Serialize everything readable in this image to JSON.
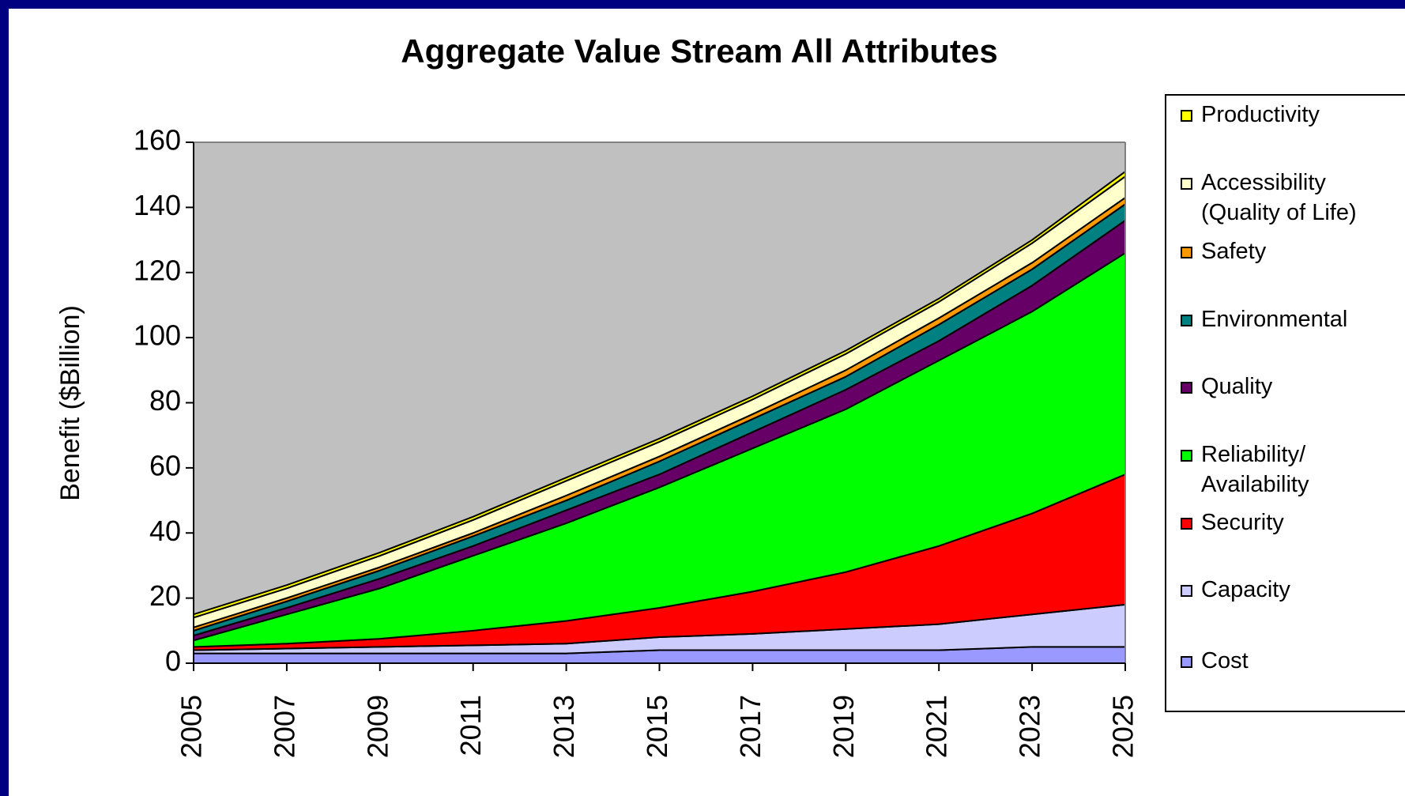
{
  "chart_data": {
    "type": "stacked_area",
    "title": "Aggregate Value Stream All Attributes",
    "y_label": "Benefit ($Billion)",
    "x": [
      2005,
      2007,
      2009,
      2011,
      2013,
      2015,
      2017,
      2019,
      2021,
      2023,
      2025
    ],
    "xlim": [
      2005,
      2025
    ],
    "xticks": [
      2005,
      2007,
      2009,
      2011,
      2013,
      2015,
      2017,
      2019,
      2021,
      2023,
      2025
    ],
    "ylim": [
      0,
      160
    ],
    "yticks": [
      0,
      20,
      40,
      60,
      80,
      100,
      120,
      140,
      160
    ],
    "plot_background": "#c0c0c0",
    "legend": "right",
    "series": [
      {
        "name": "Cost",
        "color": "#9999ff",
        "values": [
          3,
          3,
          3,
          3,
          3,
          4,
          4,
          4,
          4,
          5,
          5
        ]
      },
      {
        "name": "Capacity",
        "color": "#ccccff",
        "values": [
          1,
          1.5,
          2,
          2.5,
          3,
          4,
          5,
          6.5,
          8,
          10,
          13
        ]
      },
      {
        "name": "Security",
        "color": "#ff0000",
        "values": [
          1,
          1.5,
          2.5,
          4.5,
          7,
          9,
          13,
          17.5,
          24,
          31,
          40
        ]
      },
      {
        "name": "Reliability/ Availability",
        "color": "#00ff00",
        "values": [
          2,
          9,
          15.5,
          23,
          30,
          37,
          44,
          50,
          57,
          62,
          68
        ]
      },
      {
        "name": "Quality",
        "color": "#660066",
        "values": [
          1.5,
          2,
          3,
          3,
          4,
          4,
          5,
          6,
          6,
          8,
          10
        ]
      },
      {
        "name": "Environmental",
        "color": "#008080",
        "values": [
          1.5,
          2,
          2.5,
          3,
          3,
          4,
          4,
          4,
          5,
          5,
          5
        ]
      },
      {
        "name": "Safety",
        "color": "#ff9900",
        "values": [
          1,
          1,
          1,
          1,
          1.5,
          1.5,
          1.5,
          2,
          2,
          2,
          2
        ]
      },
      {
        "name": "Accessibility (Quality of Life)",
        "color": "#ffffcc",
        "values": [
          3,
          3,
          3.5,
          4,
          4.5,
          4.5,
          4.5,
          5,
          5,
          6,
          6.5
        ]
      },
      {
        "name": "Productivity",
        "color": "#ffff00",
        "values": [
          1,
          1,
          1,
          1,
          1,
          1,
          1,
          1,
          1,
          1,
          1.5
        ]
      }
    ]
  }
}
